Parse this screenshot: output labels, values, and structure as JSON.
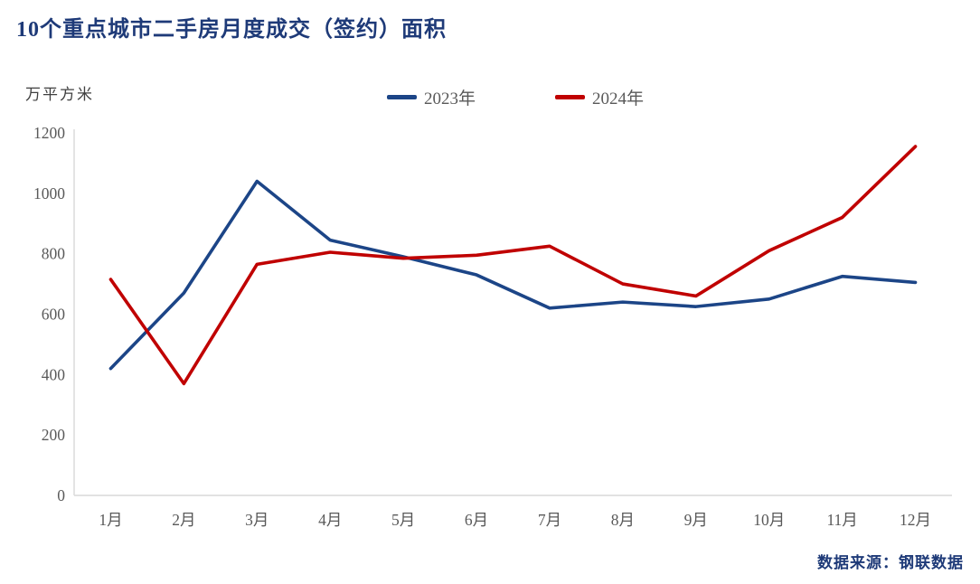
{
  "title": "10个重点城市二手房月度成交（签约）面积",
  "unit_label": "万平方米",
  "source": "数据来源：钢联数据",
  "colors": {
    "title": "#1E3A78",
    "axis_text": "#595959",
    "axis_line": "#D9D9D9",
    "series_2023": "#1C4587",
    "series_2024": "#C00000"
  },
  "chart_data": {
    "type": "line",
    "title": "10个重点城市二手房月度成交（签约）面积",
    "xlabel": "",
    "ylabel": "万平方米",
    "categories": [
      "1月",
      "2月",
      "3月",
      "4月",
      "5月",
      "6月",
      "7月",
      "8月",
      "9月",
      "10月",
      "11月",
      "12月"
    ],
    "series": [
      {
        "name": "2023年",
        "color": "#1C4587",
        "values": [
          420,
          670,
          1040,
          845,
          790,
          730,
          620,
          640,
          625,
          650,
          725,
          705
        ]
      },
      {
        "name": "2024年",
        "color": "#C00000",
        "values": [
          715,
          370,
          765,
          805,
          785,
          795,
          825,
          700,
          660,
          810,
          920,
          1155
        ]
      }
    ],
    "ylim": [
      0,
      1200
    ],
    "yticks": [
      0,
      200,
      400,
      600,
      800,
      1000,
      1200
    ],
    "grid": false,
    "legend_position": "top-center"
  }
}
